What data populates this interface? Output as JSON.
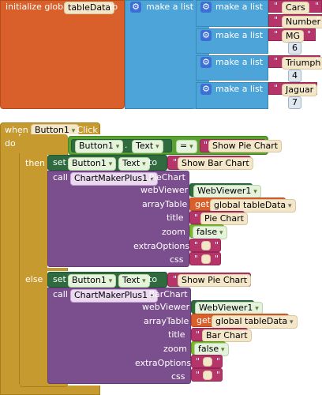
{
  "init_block": {
    "label": "initialize global",
    "var_name": "tableData",
    "to_label": "to"
  },
  "make_list_label": "make a list",
  "list_items": [
    {
      "text": "Cars"
    },
    {
      "text": "Number"
    },
    {
      "text": "MG",
      "value": "6"
    },
    {
      "text": "Triumph",
      "value": "4"
    },
    {
      "text": "Jaguar",
      "value": "7"
    }
  ],
  "event": {
    "when": "when",
    "component": "Button1",
    "event": ".Click",
    "do": "do"
  },
  "if_block": {
    "if": "if",
    "then": "then",
    "else": "else",
    "condition": {
      "component": "Button1",
      "prop": "Text",
      "op": "=",
      "value": "Show Pie Chart"
    }
  },
  "then_set": {
    "set": "set",
    "component": "Button1",
    "prop": "Text",
    "to": "to",
    "value": "Show Bar Chart"
  },
  "else_set": {
    "set": "set",
    "component": "Button1",
    "prop": "Text",
    "to": "to",
    "value": "Show Pie Chart"
  },
  "then_call": {
    "call": "call",
    "component": "ChartMakerPlus1",
    "method": ".PieChart",
    "params": {
      "webViewer": "webViewer",
      "arrayTable": "arrayTable",
      "title": "title",
      "zoom": "zoom",
      "extraOptions": "extraOptions",
      "css": "css"
    },
    "webviewer_value": "WebViewer1",
    "get": "get",
    "get_var": "global tableData",
    "title_value": "Pie Chart",
    "zoom_value": "false"
  },
  "else_call": {
    "call": "call",
    "component": "ChartMakerPlus1",
    "method": ".BarChart",
    "params": {
      "webViewer": "webViewer",
      "arrayTable": "arrayTable",
      "title": "title",
      "zoom": "zoom",
      "extraOptions": "extraOptions",
      "css": "css"
    },
    "webviewer_value": "WebViewer1",
    "get": "get",
    "get_var": "global tableData",
    "title_value": "Bar Chart",
    "zoom_value": "false"
  },
  "colors": {
    "variable": "#d9602a",
    "list": "#4da4d8",
    "text": "#b5346a",
    "control": "#c79a2f",
    "logic": "#5aa330",
    "component_setter": "#2f6b3f",
    "component_method": "#7b4f8e"
  }
}
